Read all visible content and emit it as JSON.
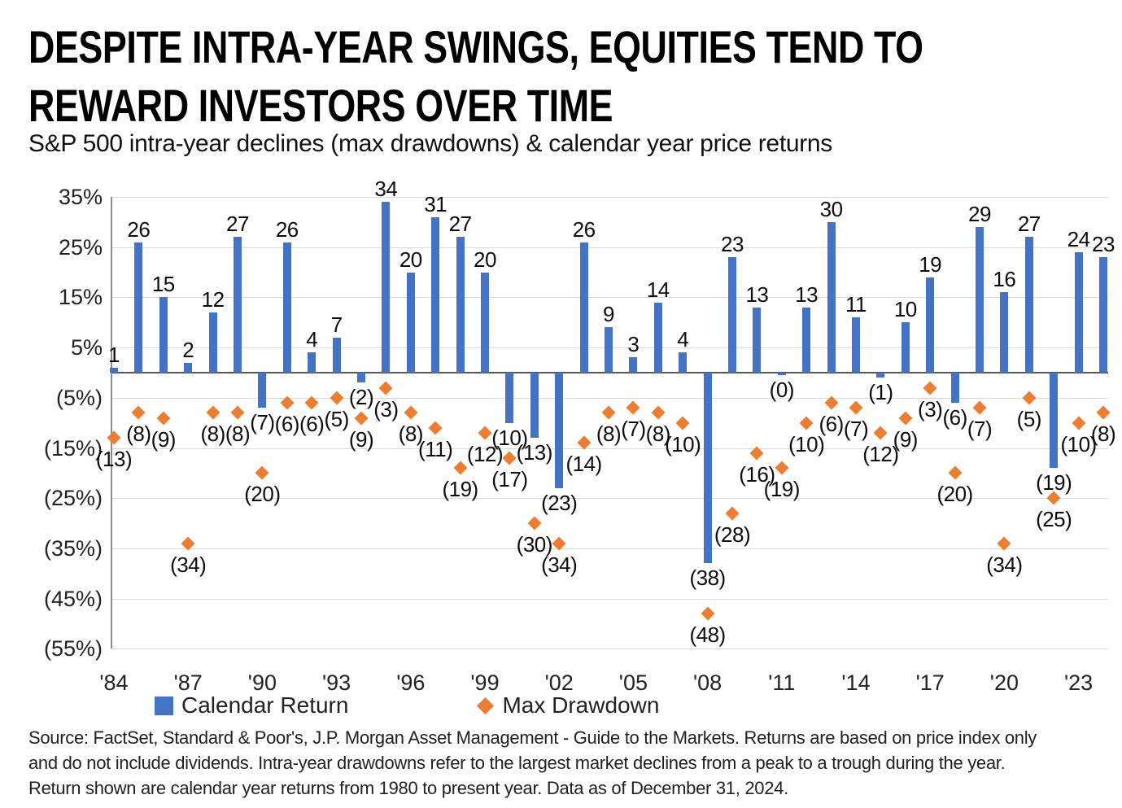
{
  "page": {
    "title_line1": "DESPITE INTRA-YEAR SWINGS, EQUITIES TEND TO",
    "title_line2": "REWARD INVESTORS OVER TIME",
    "subtitle": "S&P 500 intra-year declines (max drawdowns) & calendar year price returns",
    "source_lines": [
      "Source: FactSet, Standard & Poor's, J.P. Morgan Asset Management - Guide to the Markets. Returns are based on price index only",
      "and do not include dividends. Intra-year drawdowns refer to the largest market declines from a peak to a trough during the year.",
      "Return shown are calendar year returns from 1980 to present year. Data as of December 31, 2024."
    ]
  },
  "legend": {
    "calendar_return": "Calendar Return",
    "max_drawdown": "Max Drawdown"
  },
  "colors": {
    "bar": "#4472C4",
    "marker": "#ED7D31",
    "gridline": "#D9D9D9",
    "zero_line": "#595959",
    "axis_line": "#8C8C8C",
    "text": "#1A1A1A"
  },
  "chart_data": {
    "type": "bar",
    "title": "DESPITE INTRA-YEAR SWINGS, EQUITIES TEND TO REWARD INVESTORS OVER TIME",
    "subtitle": "S&P 500 intra-year declines (max drawdowns) & calendar year price returns",
    "x": [
      1984,
      1985,
      1986,
      1987,
      1988,
      1989,
      1990,
      1991,
      1992,
      1993,
      1994,
      1995,
      1996,
      1997,
      1998,
      1999,
      2000,
      2001,
      2002,
      2003,
      2004,
      2005,
      2006,
      2007,
      2008,
      2009,
      2010,
      2011,
      2012,
      2013,
      2014,
      2015,
      2016,
      2017,
      2018,
      2019,
      2020,
      2021,
      2022,
      2023,
      2024
    ],
    "series": [
      {
        "name": "Calendar Return",
        "type": "bar",
        "values": [
          1,
          26,
          15,
          2,
          12,
          27,
          -7,
          26,
          4,
          7,
          -2,
          34,
          20,
          31,
          27,
          20,
          -10,
          -13,
          -23,
          26,
          9,
          3,
          14,
          4,
          -38,
          23,
          13,
          0,
          13,
          30,
          11,
          -1,
          10,
          19,
          -6,
          29,
          16,
          27,
          -19,
          24,
          23
        ]
      },
      {
        "name": "Max Drawdown",
        "type": "scatter",
        "values": [
          -13,
          -8,
          -9,
          -34,
          -8,
          -8,
          -20,
          -6,
          -6,
          -5,
          -9,
          -3,
          -8,
          -11,
          -19,
          -12,
          -17,
          -30,
          -34,
          -14,
          -8,
          -7,
          -8,
          -10,
          -48,
          -28,
          -16,
          -19,
          -10,
          -6,
          -7,
          -12,
          -9,
          -3,
          -20,
          -7,
          -34,
          -5,
          -25,
          -10,
          -8
        ]
      }
    ],
    "ylim": [
      -55,
      35
    ],
    "y_ticks": [
      {
        "value": 35,
        "label": "35%"
      },
      {
        "value": 25,
        "label": "25%"
      },
      {
        "value": 15,
        "label": "15%"
      },
      {
        "value": 5,
        "label": "5%"
      },
      {
        "value": -5,
        "label": "(5%)"
      },
      {
        "value": -15,
        "label": "(15%)"
      },
      {
        "value": -25,
        "label": "(25%)"
      },
      {
        "value": -35,
        "label": "(35%)"
      },
      {
        "value": -45,
        "label": "(45%)"
      },
      {
        "value": -55,
        "label": "(55%)"
      }
    ],
    "x_tick_labels": [
      "'84",
      "'87",
      "'90",
      "'93",
      "'96",
      "'99",
      "'02",
      "'05",
      "'08",
      "'11",
      "'14",
      "'17",
      "'20",
      "'23"
    ],
    "x_tick_every": 3,
    "grid": true,
    "legend_position": "bottom",
    "label_format": "negative values shown in parentheses"
  }
}
